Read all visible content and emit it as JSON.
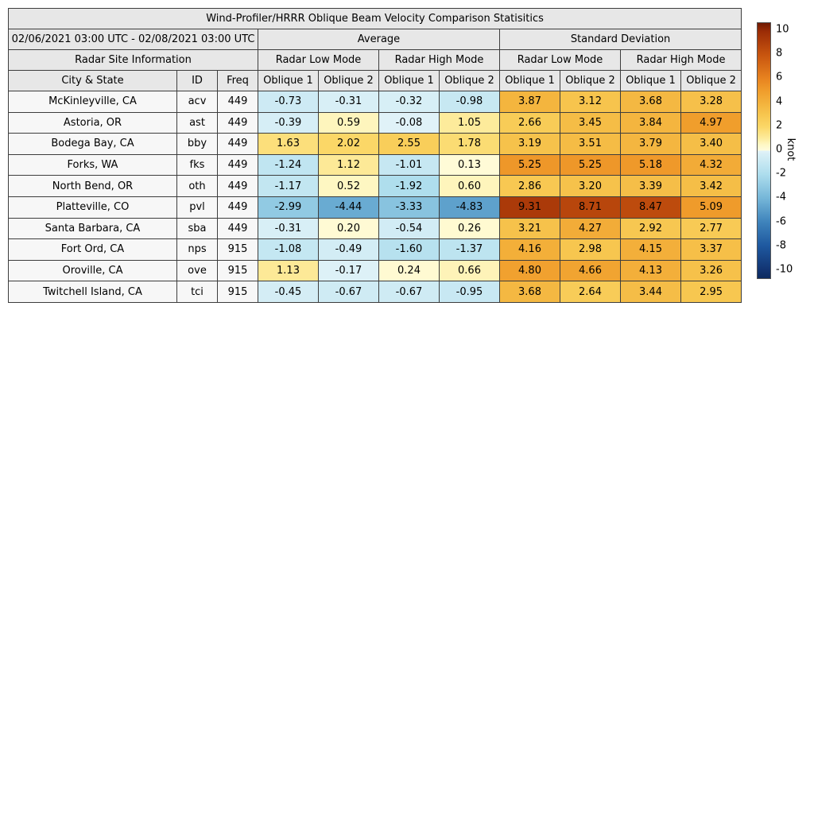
{
  "chart_data": {
    "type": "table",
    "title": "Wind-Profiler/HRRR Oblique Beam Velocity Comparison Statisitics",
    "period": "02/06/2021 03:00 UTC - 02/08/2021 03:00 UTC",
    "section_headers": {
      "average": "Average",
      "std_dev": "Standard Deviation",
      "site_info": "Radar Site Information",
      "low_mode": "Radar Low Mode",
      "high_mode": "Radar High Mode"
    },
    "columns": {
      "city": "City & State",
      "id": "ID",
      "freq": "Freq",
      "oblique1": "Oblique 1",
      "oblique2": "Oblique 2"
    },
    "value_columns": [
      "Avg Low Oblique 1",
      "Avg Low Oblique 2",
      "Avg High Oblique 1",
      "Avg High Oblique 2",
      "Std Low Oblique 1",
      "Std Low Oblique 2",
      "Std High Oblique 1",
      "Std High Oblique 2"
    ],
    "rows": [
      {
        "city": "McKinleyville, CA",
        "id": "acv",
        "freq": "449",
        "values": [
          -0.73,
          -0.31,
          -0.32,
          -0.98,
          3.87,
          3.12,
          3.68,
          3.28
        ]
      },
      {
        "city": "Astoria, OR",
        "id": "ast",
        "freq": "449",
        "values": [
          -0.39,
          0.59,
          -0.08,
          1.05,
          2.66,
          3.45,
          3.84,
          4.97
        ]
      },
      {
        "city": "Bodega Bay, CA",
        "id": "bby",
        "freq": "449",
        "values": [
          1.63,
          2.02,
          2.55,
          1.78,
          3.19,
          3.51,
          3.79,
          3.4
        ]
      },
      {
        "city": "Forks, WA",
        "id": "fks",
        "freq": "449",
        "values": [
          -1.24,
          1.12,
          -1.01,
          0.13,
          5.25,
          5.25,
          5.18,
          4.32
        ]
      },
      {
        "city": "North Bend, OR",
        "id": "oth",
        "freq": "449",
        "values": [
          -1.17,
          0.52,
          -1.92,
          0.6,
          2.86,
          3.2,
          3.39,
          3.42
        ]
      },
      {
        "city": "Platteville, CO",
        "id": "pvl",
        "freq": "449",
        "values": [
          -2.99,
          -4.44,
          -3.33,
          -4.83,
          9.31,
          8.71,
          8.47,
          5.09
        ]
      },
      {
        "city": "Santa Barbara, CA",
        "id": "sba",
        "freq": "449",
        "values": [
          -0.31,
          0.2,
          -0.54,
          0.26,
          3.21,
          4.27,
          2.92,
          2.77
        ]
      },
      {
        "city": "Fort Ord, CA",
        "id": "nps",
        "freq": "915",
        "values": [
          -1.08,
          -0.49,
          -1.6,
          -1.37,
          4.16,
          2.98,
          4.15,
          3.37
        ]
      },
      {
        "city": "Oroville, CA",
        "id": "ove",
        "freq": "915",
        "values": [
          1.13,
          -0.17,
          0.24,
          0.66,
          4.8,
          4.66,
          4.13,
          3.26
        ]
      },
      {
        "city": "Twitchell Island, CA",
        "id": "tci",
        "freq": "915",
        "values": [
          -0.45,
          -0.67,
          -0.67,
          -0.95,
          3.68,
          2.64,
          3.44,
          2.95
        ]
      }
    ],
    "colorbar": {
      "label": "knot",
      "ticks": [
        10,
        8,
        6,
        4,
        2,
        0,
        -2,
        -4,
        -6,
        -8,
        -10
      ],
      "vmin": -10.7,
      "vmax": 10.7,
      "stops": [
        {
          "v": -10.7,
          "c": "#0c2a5e"
        },
        {
          "v": -10.0,
          "c": "#123472"
        },
        {
          "v": -8.0,
          "c": "#1e589f"
        },
        {
          "v": -6.0,
          "c": "#3e83bb"
        },
        {
          "v": -4.0,
          "c": "#75b6d8"
        },
        {
          "v": -2.0,
          "c": "#addded"
        },
        {
          "v": -0.3,
          "c": "#d8eff6"
        },
        {
          "v": -0.02,
          "c": "#e2f3f8"
        },
        {
          "v": 0.02,
          "c": "#fffcdd"
        },
        {
          "v": 0.5,
          "c": "#fef7c4"
        },
        {
          "v": 1.0,
          "c": "#fdec9e"
        },
        {
          "v": 2.0,
          "c": "#fbd767"
        },
        {
          "v": 3.0,
          "c": "#f7c64f"
        },
        {
          "v": 4.0,
          "c": "#f3b23c"
        },
        {
          "v": 5.0,
          "c": "#f09d2c"
        },
        {
          "v": 6.0,
          "c": "#e88420"
        },
        {
          "v": 8.0,
          "c": "#c8550f"
        },
        {
          "v": 10.0,
          "c": "#9b2c06"
        },
        {
          "v": 10.7,
          "c": "#701a03"
        }
      ]
    },
    "style": {
      "header_bg": "#e7e7e7",
      "site_cell_bg": "#f7f7f7",
      "border_color": "#3d3d3d"
    }
  }
}
